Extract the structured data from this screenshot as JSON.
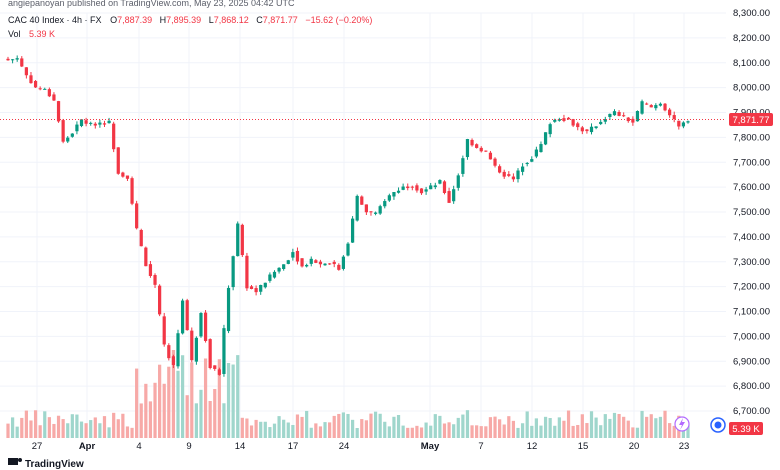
{
  "credit": "angiepanoyan published on TradingView.com, May 23, 2025 04:42 UTC",
  "header": {
    "symbol": "CAC 40 Index · 4h · FX",
    "open_label": "O",
    "open": "7,887.39",
    "high_label": "H",
    "high": "7,895.39",
    "low_label": "L",
    "low": "7,868.12",
    "close_label": "C",
    "close": "7,871.77",
    "change": "−15.62 (−0.20%)",
    "vol_label": "Vol",
    "vol": "5.39 K"
  },
  "price_tag": "7,871.77",
  "volume_tag": "5.39 K",
  "brand": "TradingView",
  "colors": {
    "up": "#089981",
    "down": "#f23645",
    "up_vol": "#9fd6cc",
    "down_vol": "#f7a9a7",
    "price_line": "#f23645",
    "grid": "#f0f3fa"
  },
  "chart_data": {
    "type": "candlestick",
    "interval": "4h",
    "y_ticks": [
      8300,
      8200,
      8100,
      8000,
      7900,
      7800,
      7700,
      7600,
      7500,
      7400,
      7300,
      7200,
      7100,
      7000,
      6900,
      6800,
      6700
    ],
    "y_tick_labels": [
      "8,300.00",
      "8,200.00",
      "8,100.00",
      "8,000.00",
      "7,900.00",
      "7,800.00",
      "7,700.00",
      "7,600.00",
      "7,500.00",
      "7,400.00",
      "7,300.00",
      "7,200.00",
      "7,100.00",
      "7,000.00",
      "6,900.00",
      "6,800.00",
      "6,700.00"
    ],
    "x_labels": [
      "27",
      "Apr",
      "4",
      "9",
      "14",
      "17",
      "24",
      "May",
      "7",
      "12",
      "15",
      "20",
      "23"
    ],
    "last_price": 7871.77,
    "close_path": [
      [
        0,
        8110
      ],
      [
        2,
        8120
      ],
      [
        4,
        8050
      ],
      [
        6,
        8000
      ],
      [
        8,
        7990
      ],
      [
        10,
        7950
      ],
      [
        12,
        7780
      ],
      [
        14,
        7820
      ],
      [
        16,
        7870
      ],
      [
        18,
        7850
      ],
      [
        20,
        7860
      ],
      [
        22,
        7860
      ],
      [
        24,
        7660
      ],
      [
        26,
        7640
      ],
      [
        28,
        7430
      ],
      [
        30,
        7290
      ],
      [
        32,
        7200
      ],
      [
        34,
        6960
      ],
      [
        36,
        6880
      ],
      [
        38,
        7150
      ],
      [
        40,
        6900
      ],
      [
        42,
        7100
      ],
      [
        44,
        6880
      ],
      [
        46,
        6850
      ],
      [
        48,
        7200
      ],
      [
        50,
        7450
      ],
      [
        52,
        7200
      ],
      [
        54,
        7180
      ],
      [
        56,
        7220
      ],
      [
        58,
        7260
      ],
      [
        60,
        7290
      ],
      [
        62,
        7340
      ],
      [
        64,
        7280
      ],
      [
        66,
        7310
      ],
      [
        68,
        7290
      ],
      [
        70,
        7300
      ],
      [
        72,
        7270
      ],
      [
        74,
        7380
      ],
      [
        76,
        7560
      ],
      [
        78,
        7500
      ],
      [
        80,
        7490
      ],
      [
        82,
        7550
      ],
      [
        84,
        7580
      ],
      [
        86,
        7600
      ],
      [
        88,
        7610
      ],
      [
        90,
        7580
      ],
      [
        92,
        7600
      ],
      [
        94,
        7620
      ],
      [
        96,
        7540
      ],
      [
        98,
        7650
      ],
      [
        100,
        7790
      ],
      [
        102,
        7760
      ],
      [
        104,
        7740
      ],
      [
        106,
        7680
      ],
      [
        108,
        7650
      ],
      [
        110,
        7630
      ],
      [
        112,
        7690
      ],
      [
        114,
        7720
      ],
      [
        116,
        7770
      ],
      [
        118,
        7860
      ],
      [
        120,
        7880
      ],
      [
        122,
        7870
      ],
      [
        124,
        7840
      ],
      [
        126,
        7820
      ],
      [
        128,
        7850
      ],
      [
        130,
        7880
      ],
      [
        132,
        7900
      ],
      [
        134,
        7880
      ],
      [
        136,
        7860
      ],
      [
        138,
        7940
      ],
      [
        140,
        7920
      ],
      [
        142,
        7940
      ],
      [
        144,
        7890
      ],
      [
        146,
        7840
      ],
      [
        148,
        7872
      ]
    ]
  }
}
